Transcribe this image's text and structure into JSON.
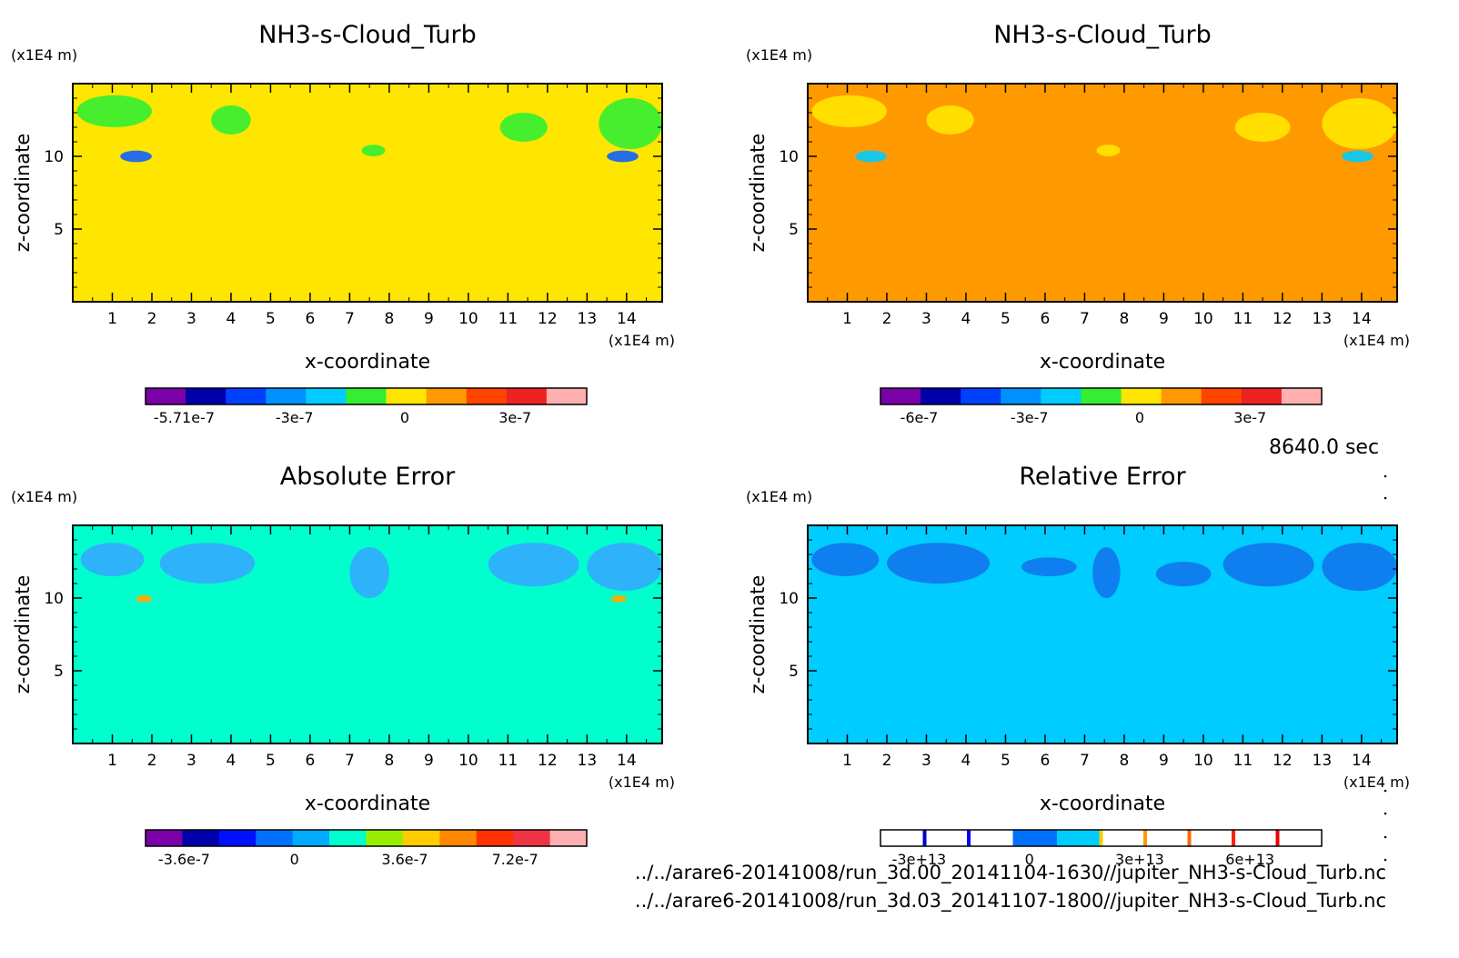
{
  "chart_data": [
    {
      "type": "heatmap",
      "title": "NH3-s-Cloud_Turb",
      "xlabel": "x-coordinate",
      "ylabel": "z-coordinate",
      "x_unit": "(x1E4 m)",
      "y_unit": "(x1E4 m)",
      "x_ticks": [
        "1",
        "2",
        "3",
        "4",
        "5",
        "6",
        "7",
        "8",
        "9",
        "10",
        "11",
        "12",
        "13",
        "14"
      ],
      "y_ticks": [
        "5",
        "10"
      ],
      "xlim": [
        0,
        14.9
      ],
      "ylim": [
        0,
        15
      ],
      "background_color": "#ffe600",
      "features": [
        {
          "color": "#33ee33",
          "x": [
            0.1,
            2.0
          ],
          "y": [
            12.0,
            14.2
          ]
        },
        {
          "color": "#33ee33",
          "x": [
            3.5,
            4.5
          ],
          "y": [
            11.5,
            13.5
          ]
        },
        {
          "color": "#33ee33",
          "x": [
            7.3,
            7.9
          ],
          "y": [
            10.0,
            10.8
          ]
        },
        {
          "color": "#33ee33",
          "x": [
            10.8,
            12.0
          ],
          "y": [
            11.0,
            13.0
          ]
        },
        {
          "color": "#33ee33",
          "x": [
            13.3,
            14.9
          ],
          "y": [
            10.5,
            14.0
          ]
        },
        {
          "color": "#1060ff",
          "x": [
            1.2,
            2.0
          ],
          "y": [
            9.6,
            10.4
          ]
        },
        {
          "color": "#1060ff",
          "x": [
            13.5,
            14.3
          ],
          "y": [
            9.6,
            10.4
          ]
        }
      ],
      "colorbar": {
        "tick_labels": [
          "-5.71e-7",
          "-3e-7",
          "0",
          "3e-7"
        ],
        "colors": [
          "#7a00a8",
          "#0000aa",
          "#0040ff",
          "#0090ff",
          "#00ccff",
          "#33ee33",
          "#ffe600",
          "#ff9900",
          "#ff4400",
          "#ee2222",
          "#ffb0b0"
        ]
      }
    },
    {
      "type": "heatmap",
      "title": "NH3-s-Cloud_Turb",
      "xlabel": "x-coordinate",
      "ylabel": "z-coordinate",
      "x_unit": "(x1E4 m)",
      "y_unit": "(x1E4 m)",
      "x_ticks": [
        "1",
        "2",
        "3",
        "4",
        "5",
        "6",
        "7",
        "8",
        "9",
        "10",
        "11",
        "12",
        "13",
        "14"
      ],
      "y_ticks": [
        "5",
        "10"
      ],
      "xlim": [
        0,
        14.9
      ],
      "ylim": [
        0,
        15
      ],
      "background_color": "#ff9900",
      "features": [
        {
          "color": "#ffe600",
          "x": [
            0.1,
            2.0
          ],
          "y": [
            12.0,
            14.2
          ]
        },
        {
          "color": "#ffe600",
          "x": [
            3.0,
            4.2
          ],
          "y": [
            11.5,
            13.5
          ]
        },
        {
          "color": "#ffe600",
          "x": [
            7.3,
            7.9
          ],
          "y": [
            10.0,
            10.8
          ]
        },
        {
          "color": "#ffe600",
          "x": [
            10.8,
            12.2
          ],
          "y": [
            11.0,
            13.0
          ]
        },
        {
          "color": "#ffe600",
          "x": [
            13.0,
            14.9
          ],
          "y": [
            10.5,
            14.0
          ]
        },
        {
          "color": "#00ccff",
          "x": [
            1.2,
            2.0
          ],
          "y": [
            9.6,
            10.4
          ]
        },
        {
          "color": "#00ccff",
          "x": [
            13.5,
            14.3
          ],
          "y": [
            9.6,
            10.4
          ]
        }
      ],
      "colorbar": {
        "tick_labels": [
          "-6e-7",
          "-3e-7",
          "0",
          "3e-7"
        ],
        "colors": [
          "#7a00a8",
          "#0000aa",
          "#0040ff",
          "#0090ff",
          "#00ccff",
          "#33ee33",
          "#ffe600",
          "#ff9900",
          "#ff4400",
          "#ee2222",
          "#ffb0b0"
        ]
      }
    },
    {
      "type": "heatmap",
      "title": "Absolute Error",
      "xlabel": "x-coordinate",
      "ylabel": "z-coordinate",
      "x_unit": "(x1E4 m)",
      "y_unit": "(x1E4 m)",
      "x_ticks": [
        "1",
        "2",
        "3",
        "4",
        "5",
        "6",
        "7",
        "8",
        "9",
        "10",
        "11",
        "12",
        "13",
        "14"
      ],
      "y_ticks": [
        "5",
        "10"
      ],
      "xlim": [
        0,
        14.9
      ],
      "ylim": [
        0,
        15
      ],
      "background_color": "#00ffcc",
      "features": [
        {
          "color": "#33aaff",
          "x": [
            0.2,
            1.8
          ],
          "y": [
            11.5,
            13.8
          ]
        },
        {
          "color": "#33aaff",
          "x": [
            2.2,
            4.6
          ],
          "y": [
            11.0,
            13.8
          ]
        },
        {
          "color": "#33aaff",
          "x": [
            7.0,
            8.0
          ],
          "y": [
            10.0,
            13.5
          ]
        },
        {
          "color": "#33aaff",
          "x": [
            10.5,
            12.8
          ],
          "y": [
            10.8,
            13.8
          ]
        },
        {
          "color": "#33aaff",
          "x": [
            13.0,
            14.9
          ],
          "y": [
            10.5,
            13.8
          ]
        },
        {
          "color": "#ffaa00",
          "x": [
            1.6,
            2.0
          ],
          "y": [
            9.7,
            10.2
          ]
        },
        {
          "color": "#ffaa00",
          "x": [
            13.6,
            14.0
          ],
          "y": [
            9.7,
            10.2
          ]
        }
      ],
      "colorbar": {
        "tick_labels": [
          "-3.6e-7",
          "0",
          "3.6e-7",
          "7.2e-7"
        ],
        "colors": [
          "#7a00a8",
          "#0000aa",
          "#0010ff",
          "#0070ff",
          "#00aaff",
          "#00ffcc",
          "#99ee00",
          "#ffcc00",
          "#ff8800",
          "#ff3300",
          "#ee3344",
          "#ffb0b0"
        ]
      }
    },
    {
      "type": "heatmap",
      "title": "Relative Error",
      "xlabel": "x-coordinate",
      "ylabel": "z-coordinate",
      "x_unit": "(x1E4 m)",
      "y_unit": "(x1E4 m)",
      "x_ticks": [
        "1",
        "2",
        "3",
        "4",
        "5",
        "6",
        "7",
        "8",
        "9",
        "10",
        "11",
        "12",
        "13",
        "14"
      ],
      "y_ticks": [
        "5",
        "10"
      ],
      "xlim": [
        0,
        14.9
      ],
      "ylim": [
        0,
        15
      ],
      "background_color": "#00ccff",
      "features": [
        {
          "color": "#1177ee",
          "x": [
            0.1,
            1.8
          ],
          "y": [
            11.5,
            13.8
          ]
        },
        {
          "color": "#1177ee",
          "x": [
            2.0,
            4.6
          ],
          "y": [
            11.0,
            13.8
          ]
        },
        {
          "color": "#1177ee",
          "x": [
            5.4,
            6.8
          ],
          "y": [
            11.5,
            12.8
          ]
        },
        {
          "color": "#1177ee",
          "x": [
            7.2,
            7.9
          ],
          "y": [
            10.0,
            13.5
          ]
        },
        {
          "color": "#1177ee",
          "x": [
            8.8,
            10.2
          ],
          "y": [
            10.8,
            12.5
          ]
        },
        {
          "color": "#1177ee",
          "x": [
            10.5,
            12.8
          ],
          "y": [
            10.8,
            13.8
          ]
        },
        {
          "color": "#1177ee",
          "x": [
            13.0,
            14.9
          ],
          "y": [
            10.5,
            13.8
          ]
        }
      ],
      "colorbar": {
        "tick_labels": [
          "-3e+13",
          "0",
          "3e+13",
          "6e+13"
        ],
        "colors": [
          "#ffffff",
          "#ffffff",
          "#ffffff",
          "#0070ff",
          "#00ccff",
          "#ffffff",
          "#ffffff",
          "#ffffff",
          "#ffffff",
          "#ffffff"
        ],
        "stripes": [
          "#0000cc",
          "#0000ff",
          "#ffcc00",
          "#ff9900",
          "#ff6600",
          "#ff2200",
          "#ee0000"
        ]
      }
    }
  ],
  "time_label": "8640.0 sec",
  "footer": [
    "../../arare6-20141008/run_3d.00_20141104-1630//jupiter_NH3-s-Cloud_Turb.nc",
    "../../arare6-20141008/run_3d.03_20141107-1800//jupiter_NH3-s-Cloud_Turb.nc"
  ]
}
